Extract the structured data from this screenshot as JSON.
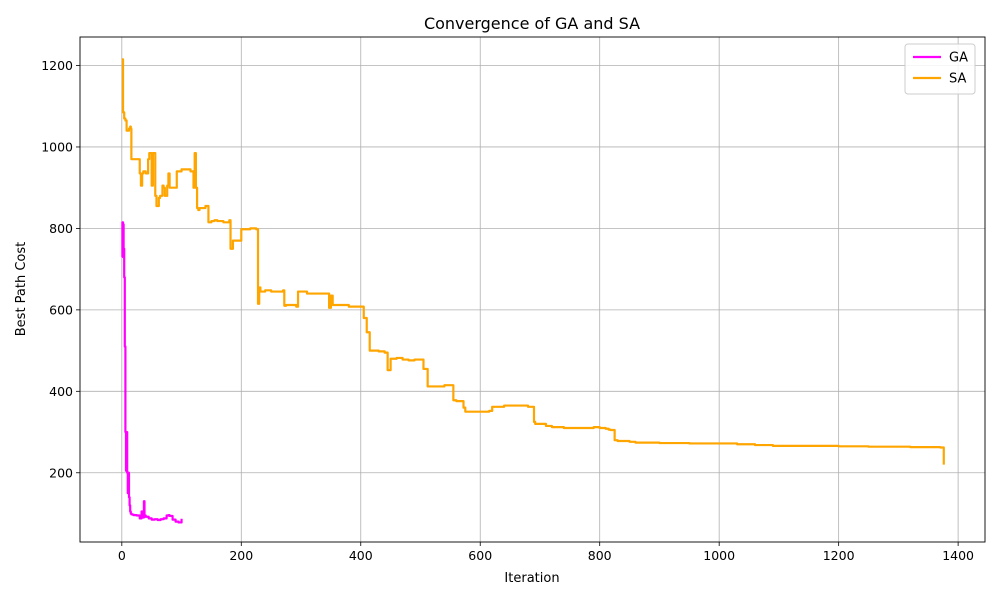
{
  "chart_data": {
    "type": "line",
    "title": "Convergence of GA and SA",
    "xlabel": "Iteration",
    "ylabel": "Best Path Cost",
    "xlim": [
      -70,
      1445
    ],
    "ylim": [
      30,
      1270
    ],
    "xticks": [
      0,
      200,
      400,
      600,
      800,
      1000,
      1200,
      1400
    ],
    "yticks": [
      200,
      400,
      600,
      800,
      1000,
      1200
    ],
    "grid": true,
    "legend_position": "top-right",
    "series": [
      {
        "name": "GA",
        "color": "#ff00ff",
        "x": [
          0,
          1,
          2,
          3,
          4,
          5,
          6,
          7,
          8,
          9,
          10,
          11,
          12,
          13,
          14,
          15,
          16,
          18,
          20,
          25,
          30,
          33,
          35,
          37,
          38,
          40,
          45,
          50,
          55,
          60,
          65,
          70,
          75,
          78,
          80,
          85,
          90,
          95,
          100
        ],
        "y": [
          730,
          815,
          810,
          750,
          680,
          510,
          300,
          205,
          300,
          200,
          150,
          200,
          140,
          120,
          105,
          100,
          98,
          97,
          96,
          95,
          88,
          105,
          90,
          130,
          95,
          92,
          88,
          85,
          86,
          84,
          86,
          88,
          95,
          96,
          94,
          85,
          80,
          78,
          87
        ]
      },
      {
        "name": "SA",
        "color": "#ffa500",
        "x": [
          0,
          2,
          4,
          6,
          8,
          10,
          12,
          14,
          15,
          16,
          18,
          20,
          25,
          30,
          32,
          34,
          36,
          40,
          44,
          46,
          48,
          50,
          52,
          54,
          56,
          58,
          60,
          62,
          64,
          66,
          68,
          70,
          72,
          74,
          76,
          78,
          80,
          82,
          84,
          86,
          88,
          90,
          92,
          94,
          100,
          110,
          115,
          120,
          122,
          124,
          126,
          128,
          130,
          135,
          140,
          145,
          148,
          150,
          155,
          160,
          170,
          175,
          180,
          182,
          184,
          186,
          188,
          190,
          195,
          200,
          210,
          215,
          220,
          225,
          228,
          230,
          232,
          234,
          240,
          250,
          260,
          270,
          272,
          275,
          280,
          290,
          292,
          295,
          300,
          310,
          320,
          330,
          340,
          345,
          347,
          350,
          353,
          356,
          360,
          370,
          380,
          390,
          400,
          402,
          405,
          408,
          410,
          412,
          415,
          420,
          430,
          440,
          442,
          445,
          450,
          460,
          470,
          480,
          490,
          500,
          505,
          510,
          512,
          515,
          520,
          530,
          540,
          550,
          555,
          560,
          570,
          572,
          575,
          580,
          590,
          600,
          610,
          615,
          618,
          620,
          630,
          640,
          650,
          660,
          670,
          680,
          688,
          690,
          692,
          700,
          710,
          720,
          730,
          740,
          760,
          770,
          790,
          800,
          810,
          815,
          818,
          825,
          830,
          850,
          855,
          860,
          900,
          950,
          1000,
          1025,
          1030,
          1050,
          1060,
          1085,
          1090,
          1100,
          1200,
          1245,
          1250,
          1300,
          1320,
          1370,
          1375,
          1376
        ],
        "y": [
          1215,
          1085,
          1070,
          1065,
          1040,
          1040,
          1045,
          1050,
          1045,
          970,
          970,
          970,
          970,
          935,
          905,
          935,
          940,
          935,
          970,
          985,
          985,
          905,
          985,
          985,
          880,
          855,
          855,
          875,
          880,
          880,
          905,
          900,
          880,
          880,
          905,
          935,
          900,
          900,
          900,
          900,
          900,
          900,
          940,
          940,
          945,
          945,
          940,
          900,
          985,
          900,
          850,
          845,
          850,
          850,
          855,
          815,
          815,
          818,
          820,
          818,
          815,
          815,
          820,
          750,
          750,
          770,
          770,
          770,
          770,
          798,
          798,
          800,
          800,
          798,
          615,
          655,
          645,
          645,
          648,
          645,
          645,
          648,
          610,
          612,
          612,
          612,
          608,
          645,
          645,
          640,
          640,
          640,
          640,
          640,
          605,
          635,
          612,
          612,
          612,
          612,
          608,
          608,
          608,
          608,
          580,
          580,
          545,
          545,
          500,
          500,
          498,
          495,
          495,
          452,
          480,
          482,
          478,
          476,
          478,
          478,
          455,
          455,
          412,
          412,
          412,
          412,
          415,
          415,
          378,
          376,
          376,
          360,
          350,
          350,
          350,
          350,
          350,
          352,
          352,
          362,
          362,
          365,
          365,
          365,
          365,
          362,
          362,
          325,
          320,
          320,
          315,
          312,
          312,
          310,
          310,
          310,
          312,
          310,
          308,
          306,
          305,
          280,
          278,
          276,
          276,
          274,
          273,
          272,
          272,
          272,
          270,
          270,
          268,
          268,
          266,
          266,
          265,
          265,
          264,
          264,
          263,
          262,
          262,
          220
        ]
      }
    ]
  }
}
